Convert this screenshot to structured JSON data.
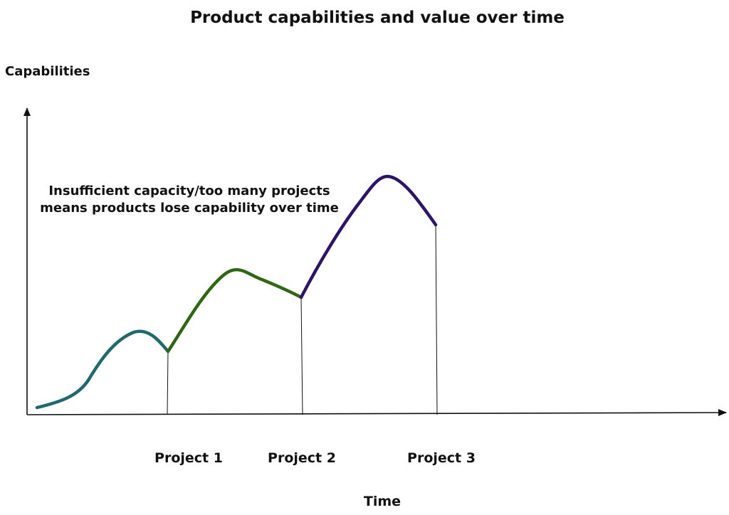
{
  "title": "Product capabilities and value over time",
  "y_axis_label": "Capabilities",
  "x_axis_label": "Time",
  "annotation": {
    "line1": "Insufficient capacity/too many projects",
    "line2": "means products lose capability over time"
  },
  "projects": [
    {
      "label": "Project 1",
      "color": "#1f6a6e"
    },
    {
      "label": "Project 2",
      "color": "#2f6614"
    },
    {
      "label": "Project 3",
      "color": "#2e1467"
    }
  ],
  "colors": {
    "axis": "#111111",
    "text": "#111111"
  }
}
